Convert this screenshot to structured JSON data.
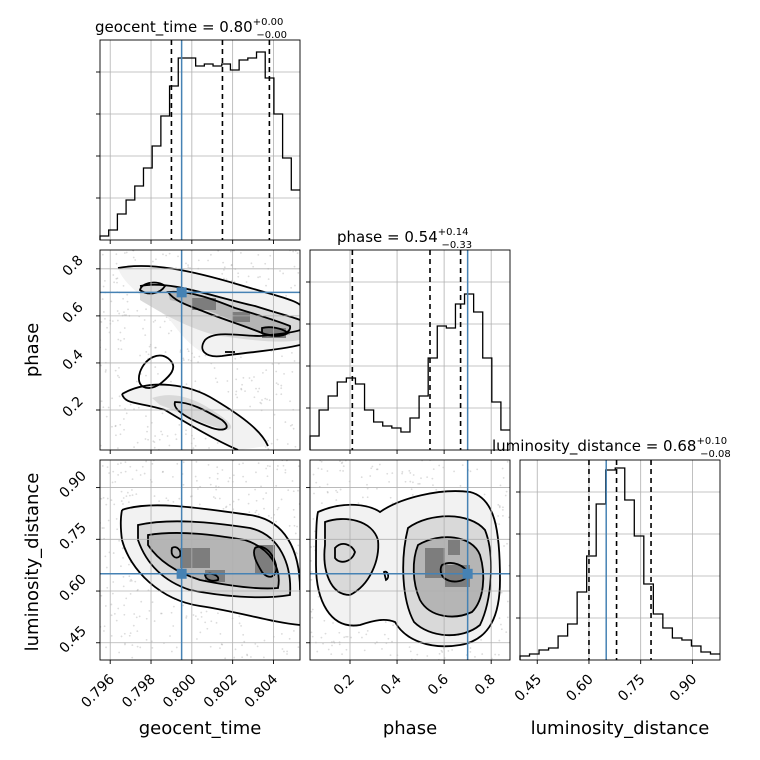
{
  "chart_data": {
    "type": "corner",
    "parameters": [
      "geocent_time",
      "phase",
      "luminosity_distance"
    ],
    "titles": [
      {
        "param": "geocent_time",
        "prefix": "geocent_time = ",
        "median": "0.80",
        "plus": "+0.00",
        "minus": "−0.00"
      },
      {
        "param": "phase",
        "prefix": "phase = ",
        "median": "0.54",
        "plus": "+0.14",
        "minus": "−0.33"
      },
      {
        "param": "luminosity_distance",
        "prefix": "luminosity_distance = ",
        "median": "0.68",
        "plus": "+0.10",
        "minus": "−0.08"
      }
    ],
    "ranges": {
      "geocent_time": [
        0.7955,
        0.8053
      ],
      "phase": [
        0.03,
        0.88
      ],
      "luminosity_distance": [
        0.4,
        0.98
      ]
    },
    "ticks": {
      "geocent_time": {
        "values": [
          0.796,
          0.798,
          0.8,
          0.802,
          0.804
        ],
        "labels": [
          "0.796",
          "0.798",
          "0.800",
          "0.802",
          "0.804"
        ]
      },
      "phase": {
        "values": [
          0.2,
          0.4,
          0.6,
          0.8
        ],
        "labels": [
          "0.2",
          "0.4",
          "0.6",
          "0.8"
        ]
      },
      "luminosity_distance": {
        "values": [
          0.45,
          0.6,
          0.75,
          0.9
        ],
        "labels": [
          "0.45",
          "0.60",
          "0.75",
          "0.90"
        ]
      }
    },
    "truths": {
      "geocent_time": 0.7995,
      "phase": 0.7,
      "luminosity_distance": 0.65
    },
    "quantiles": {
      "geocent_time": [
        0.799,
        0.8015,
        0.8038
      ],
      "phase": [
        0.21,
        0.54,
        0.67
      ],
      "luminosity_distance": [
        0.6,
        0.68,
        0.78
      ]
    },
    "histograms": {
      "geocent_time": [
        0.02,
        0.05,
        0.13,
        0.2,
        0.27,
        0.36,
        0.47,
        0.62,
        0.77,
        0.91,
        0.91,
        0.87,
        0.88,
        0.87,
        0.88,
        0.85,
        0.9,
        0.91,
        0.94,
        0.81,
        0.63,
        0.41,
        0.25
      ],
      "phase": [
        0.07,
        0.2,
        0.27,
        0.34,
        0.36,
        0.33,
        0.2,
        0.14,
        0.12,
        0.11,
        0.09,
        0.16,
        0.27,
        0.46,
        0.62,
        0.61,
        0.73,
        0.78,
        0.69,
        0.46,
        0.24,
        0.1
      ],
      "luminosity_distance": [
        0.02,
        0.03,
        0.05,
        0.06,
        0.12,
        0.18,
        0.34,
        0.52,
        0.78,
        0.95,
        0.96,
        0.8,
        0.62,
        0.38,
        0.23,
        0.16,
        0.11,
        0.1,
        0.07,
        0.04,
        0.03
      ]
    },
    "grid": true
  }
}
